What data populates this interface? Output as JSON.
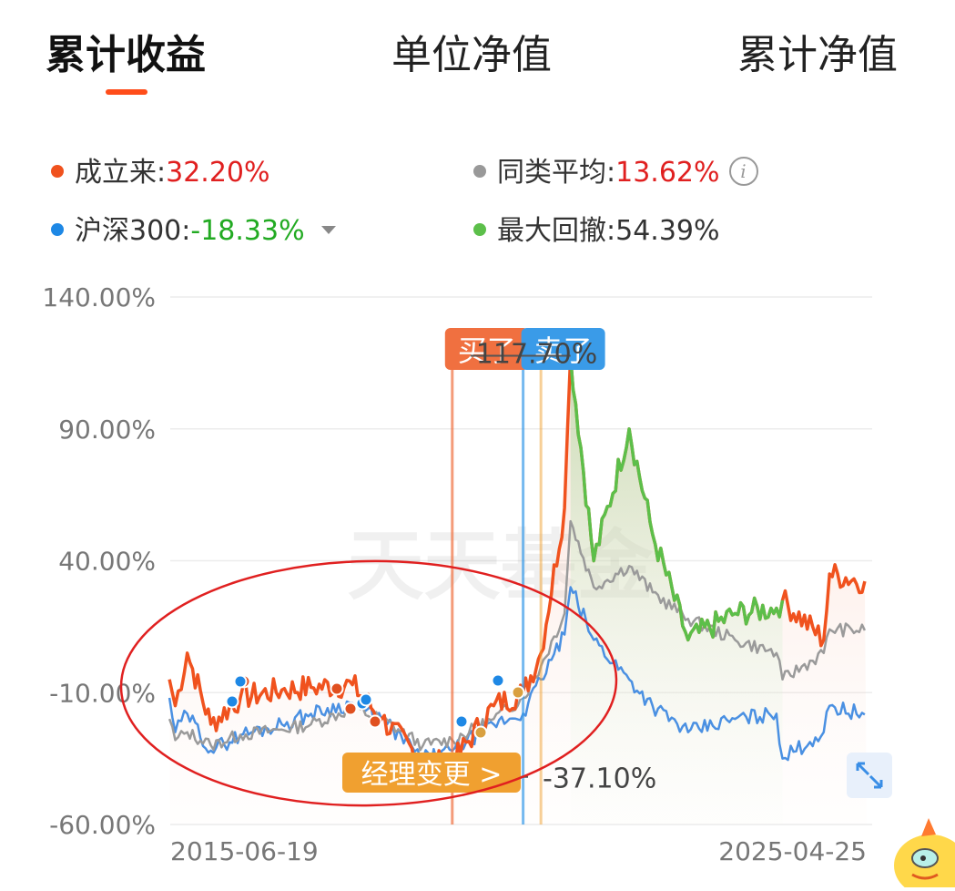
{
  "tabs": [
    {
      "label": "累计收益",
      "active": true
    },
    {
      "label": "单位净值",
      "active": false
    },
    {
      "label": "累计净值",
      "active": false
    }
  ],
  "legend": {
    "since_inception": {
      "label": "成立来:",
      "value": "32.20%",
      "dot_color": "#f0521e",
      "value_color": "#e02020"
    },
    "category_avg": {
      "label": "同类平均:",
      "value": "13.62%",
      "dot_color": "#999999",
      "value_color": "#e02020",
      "icon": "info-icon"
    },
    "hs300": {
      "label": "沪深300:",
      "value": "-18.33%",
      "dot_color": "#1e88e5",
      "value_color": "#22aa22",
      "icon": "caret-down-icon"
    },
    "max_drawdown": {
      "label": "最大回撤:",
      "value": "54.39%",
      "dot_color": "#5cbf4a",
      "value_color": "#222222"
    }
  },
  "annotations": {
    "buy_label": "买了",
    "sell_label": "卖了",
    "gain_label": "117.70%",
    "manager_change_label": "经理变更 >",
    "low_label": "-37.10%",
    "watermark": "天天基金"
  },
  "colors": {
    "fund": "#f0521e",
    "category": "#9a9a9a",
    "hs300": "#4a90e2",
    "drawdown": "#5cbf4a",
    "buy": "#f07040",
    "sell": "#3a9be8",
    "manager": "#f0a030",
    "circle": "#e02020"
  },
  "chart_data": {
    "type": "line",
    "x_start_label": "2015-06-19",
    "x_end_label": "2025-04-25",
    "y_ticks": [
      "140.00%",
      "90.00%",
      "40.00%",
      "-10.00%",
      "-60.00%"
    ],
    "ylim": [
      -60,
      140
    ],
    "x": [
      "2015-06",
      "2015-07",
      "2015-09",
      "2016-01",
      "2016-06",
      "2017-01",
      "2017-06",
      "2018-01",
      "2018-06",
      "2019-01",
      "2019-06",
      "2020-01",
      "2020-06",
      "2020-09",
      "2021-01",
      "2021-02",
      "2021-06",
      "2021-12",
      "2022-04",
      "2022-10",
      "2023-06",
      "2024-01",
      "2024-02",
      "2024-09",
      "2024-10",
      "2025-04"
    ],
    "series": [
      {
        "name": "成立来",
        "values": [
          -5,
          -15,
          5,
          -22,
          -12,
          -9,
          -8,
          -7,
          -20,
          -36,
          -37,
          -15,
          -10,
          5,
          60,
          117.7,
          40,
          90,
          50,
          10,
          20,
          22,
          25,
          10,
          35,
          32.2
        ]
      },
      {
        "name": "同类平均",
        "values": [
          -20,
          -28,
          -25,
          -30,
          -26,
          -24,
          -22,
          -16,
          -20,
          -30,
          -28,
          -20,
          -12,
          0,
          20,
          55,
          30,
          38,
          28,
          18,
          10,
          5,
          -5,
          5,
          14,
          13.6
        ]
      },
      {
        "name": "沪深300",
        "values": [
          -12,
          -25,
          -18,
          -32,
          -26,
          -22,
          -18,
          -14,
          -20,
          -35,
          -32,
          -22,
          -18,
          -5,
          12,
          30,
          10,
          -5,
          -15,
          -25,
          -20,
          -18,
          -35,
          -25,
          -15,
          -18.3
        ]
      }
    ],
    "markers": {
      "buy": "2019-06",
      "sell": "2020-06",
      "manager_change": "2020-09",
      "peak": "2021-02",
      "peak_value": 117.7,
      "low_value": -37.1
    },
    "max_drawdown": {
      "from": "2021-02",
      "to": "2024-02",
      "value": 54.39
    },
    "legend_position": "top"
  }
}
